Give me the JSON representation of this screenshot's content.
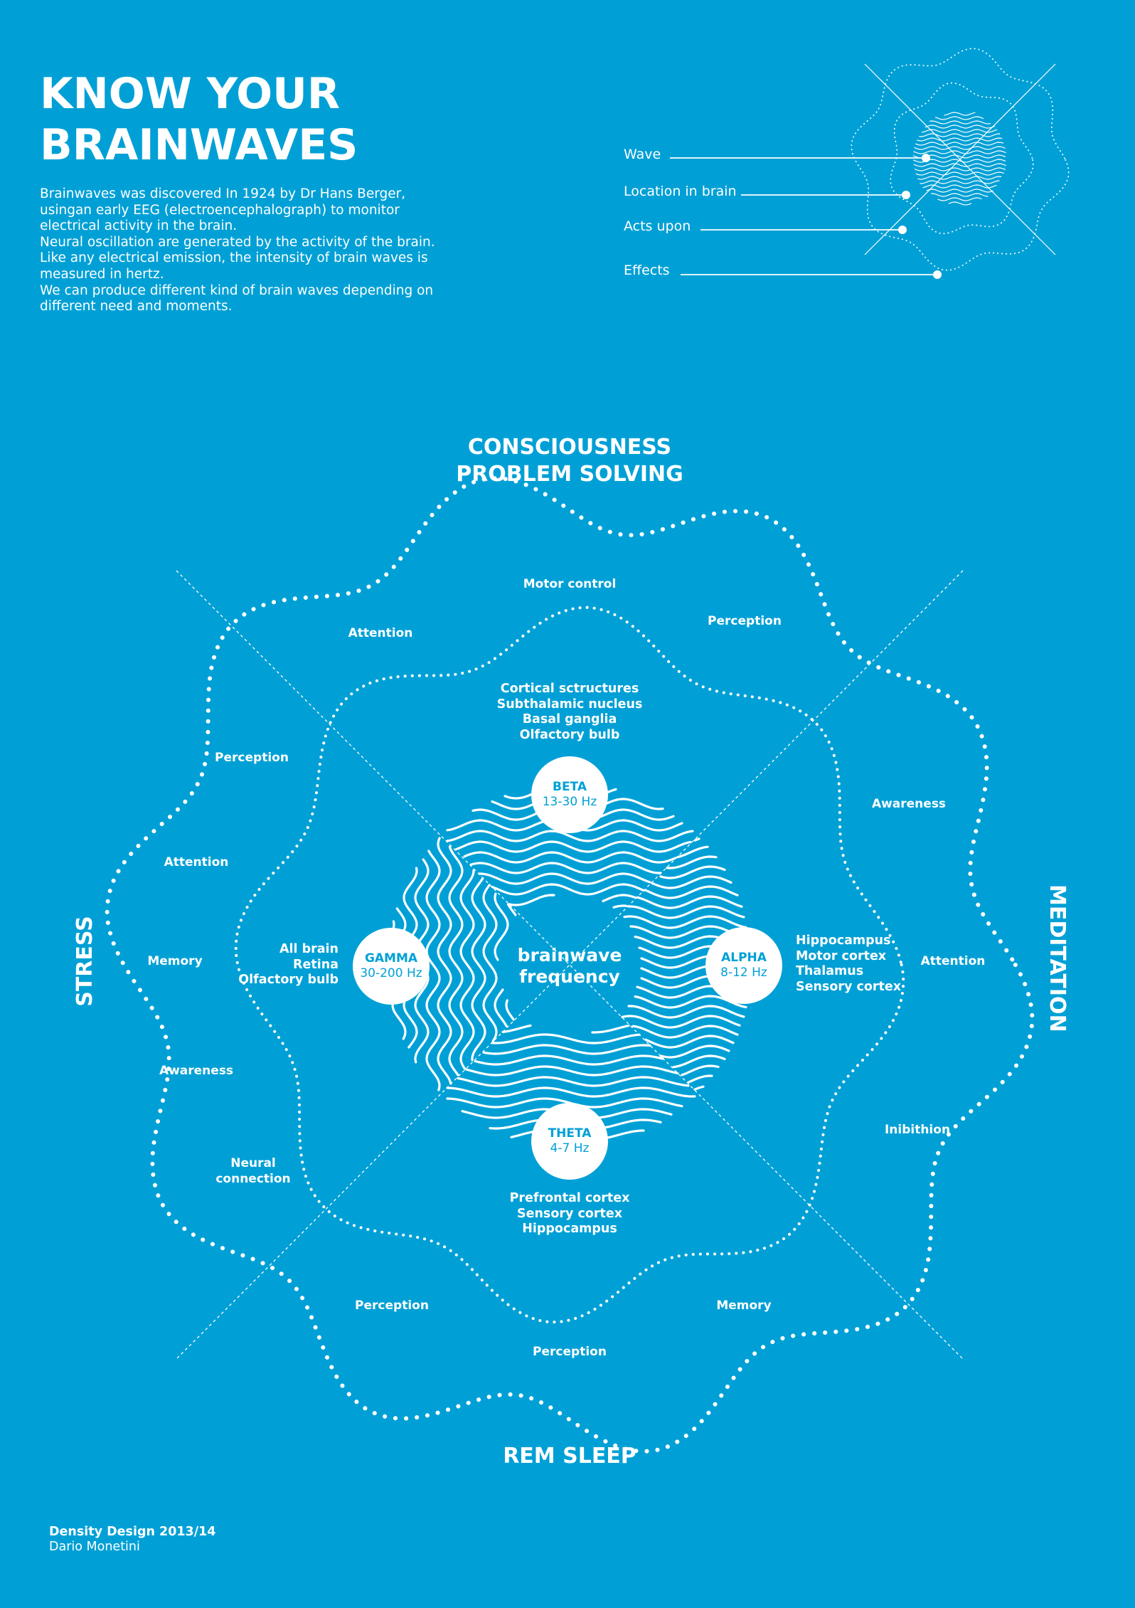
{
  "title": {
    "line1": "KNOW YOUR",
    "line2": "BRAINWAVES"
  },
  "intro": {
    "p1": "Brainwaves was discovered In 1924 by Dr Hans Berger, usingan early EEG (electroencephalograph) to monitor electrical activity in the brain.",
    "p2": "Neural oscillation are generated by the activity of the brain. Like any electrical emission, the intensity of brain waves is measured in hertz.",
    "p3": "We can produce different kind of brain waves depending on different need and moments."
  },
  "legend": {
    "wave": "Wave",
    "location": "Location in brain",
    "acts": "Acts upon",
    "effects": "Effects"
  },
  "axes": {
    "top_line1": "CONSCIOUSNESS",
    "top_line2": "PROBLEM SOLVING",
    "bottom": "REM SLEEP",
    "left": "STRESS",
    "right": "MEDITATION"
  },
  "center": {
    "line1": "brainwave",
    "line2": "frequency"
  },
  "waves": {
    "beta": {
      "name": "BETA",
      "freq": "13-30 Hz"
    },
    "alpha": {
      "name": "ALPHA",
      "freq": "8-12 Hz"
    },
    "theta": {
      "name": "THETA",
      "freq": "4-7 Hz"
    },
    "gamma": {
      "name": "GAMMA",
      "freq": "30-200 Hz"
    }
  },
  "locations": {
    "beta": [
      "Cortical sctructures",
      "Subthalamic nucleus",
      "Basal ganglia",
      "Olfactory bulb"
    ],
    "alpha": [
      "Hippocampus",
      "Motor cortex",
      "Thalamus",
      "Sensory cortex"
    ],
    "theta": [
      "Prefrontal cortex",
      "Sensory cortex",
      "Hippocampus"
    ],
    "gamma": [
      "All brain",
      "Retina",
      "Olfactory bulb"
    ]
  },
  "effects": {
    "top": "Motor control",
    "top_left": "Attention",
    "top_right": "Perception",
    "upper_left": "Perception",
    "upper_right": "Awareness",
    "left_1": "Attention",
    "left_2": "Memory",
    "left_3": "Awareness",
    "left_4_line1": "Neural",
    "left_4_line2": "connection",
    "right_1": "Attention",
    "right_2": "Inibithion",
    "bottom_left": "Perception",
    "bottom_right": "Memory",
    "bottom": "Perception"
  },
  "credit": {
    "line1": "Density Design 2013/14",
    "line2": "Dario Monetini"
  }
}
